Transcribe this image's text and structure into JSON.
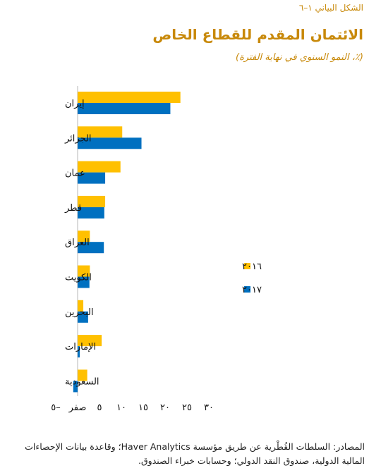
{
  "figure_label": "الشكل البياني ١–٦",
  "chart_data": {
    "type": "bar",
    "orientation": "horizontal",
    "title": "الائتمان المقدم للقطاع الخاص",
    "subtitle": "(٪، النمو السنوي في نهاية الفترة)",
    "categories": [
      "إيران",
      "الجزائر",
      "عمان",
      "قطر",
      "العراق",
      "الكويت",
      "البحرين",
      "الإمارات",
      "السعودية"
    ],
    "series": [
      {
        "name": "٢٠١٦",
        "color": "#FFC000",
        "values": [
          23.5,
          10.2,
          9.8,
          6.3,
          2.8,
          2.8,
          1.3,
          5.5,
          2.2
        ]
      },
      {
        "name": "٢٠١٧",
        "color": "#0070C0",
        "values": [
          21.2,
          14.6,
          6.3,
          6.1,
          6.0,
          2.7,
          2.4,
          0.5,
          -1.0
        ]
      }
    ],
    "xlim": [
      -5,
      30
    ],
    "xticks": [
      -5,
      0,
      5,
      10,
      15,
      20,
      25,
      30
    ],
    "xtick_labels": [
      "–٥",
      "صفر",
      "٥",
      "١٠",
      "١٥",
      "٢٠",
      "٢٥",
      "٣٠"
    ],
    "grid": false,
    "legend_position": "right-middle"
  },
  "source": "المصادر: السلطات القُطْرية عن طريق مؤسسة Haver Analytics؛ وقاعدة بيانات الإحصاءات المالية الدولية، صندوق النقد الدولي؛ وحسابات خبراء الصندوق."
}
